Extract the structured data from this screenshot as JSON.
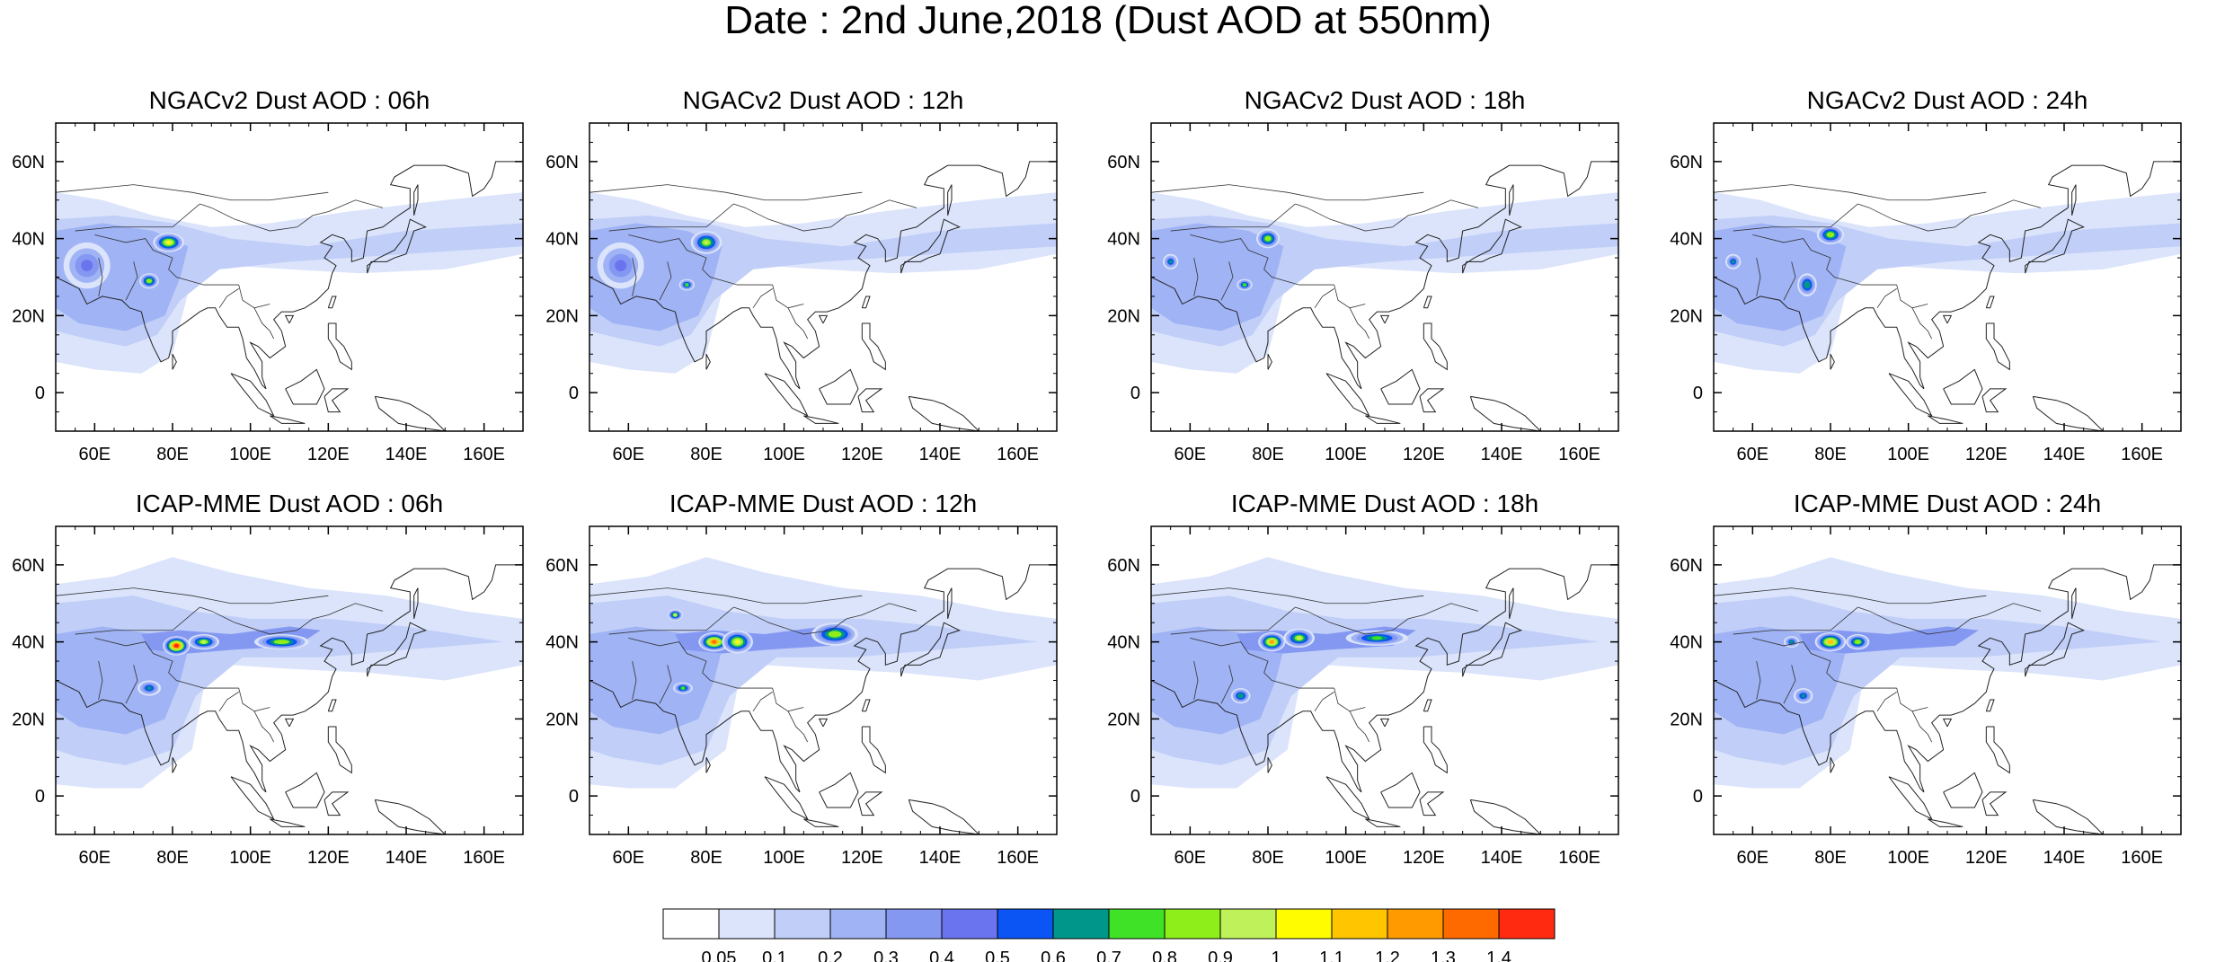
{
  "title": "Date : 2nd June,2018 (Dust AOD at 550nm)",
  "panels": [
    {
      "title": "NGACv2 Dust AOD : 06h",
      "model": "NGACv2",
      "hour": "06h",
      "hotspots": [
        {
          "lon": 79,
          "lat": 39,
          "level": 1.0,
          "rx": 4,
          "ry": 2.5
        },
        {
          "lon": 74,
          "lat": 29,
          "level": 0.8,
          "rx": 2.5,
          "ry": 2
        },
        {
          "lon": 58,
          "lat": 33,
          "level": 0.45,
          "rx": 6,
          "ry": 6
        }
      ]
    },
    {
      "title": "NGACv2 Dust AOD : 12h",
      "model": "NGACv2",
      "hour": "12h",
      "hotspots": [
        {
          "lon": 80,
          "lat": 39,
          "level": 0.9,
          "rx": 4,
          "ry": 3
        },
        {
          "lon": 75,
          "lat": 28,
          "level": 0.75,
          "rx": 2,
          "ry": 1.5
        },
        {
          "lon": 58,
          "lat": 33,
          "level": 0.45,
          "rx": 6,
          "ry": 6
        }
      ]
    },
    {
      "title": "NGACv2 Dust AOD : 18h",
      "model": "NGACv2",
      "hour": "18h",
      "hotspots": [
        {
          "lon": 80,
          "lat": 40,
          "level": 0.85,
          "rx": 3,
          "ry": 2.5
        },
        {
          "lon": 74,
          "lat": 28,
          "level": 0.7,
          "rx": 2,
          "ry": 1.5
        },
        {
          "lon": 55,
          "lat": 34,
          "level": 0.6,
          "rx": 2,
          "ry": 2
        }
      ]
    },
    {
      "title": "NGACv2 Dust AOD : 24h",
      "model": "NGACv2",
      "hour": "24h",
      "hotspots": [
        {
          "lon": 80,
          "lat": 41,
          "level": 0.85,
          "rx": 3.5,
          "ry": 2.5
        },
        {
          "lon": 74,
          "lat": 28,
          "level": 0.65,
          "rx": 2.5,
          "ry": 3
        },
        {
          "lon": 55,
          "lat": 34,
          "level": 0.6,
          "rx": 2,
          "ry": 2
        }
      ]
    },
    {
      "title": "ICAP-MME Dust AOD : 06h",
      "model": "ICAP-MME",
      "hour": "06h",
      "hotspots": [
        {
          "lon": 81,
          "lat": 39,
          "level": 1.45,
          "rx": 3.5,
          "ry": 2.5
        },
        {
          "lon": 88,
          "lat": 40,
          "level": 0.9,
          "rx": 4,
          "ry": 2
        },
        {
          "lon": 108,
          "lat": 40,
          "level": 0.85,
          "rx": 7,
          "ry": 2
        },
        {
          "lon": 74,
          "lat": 28,
          "level": 0.6,
          "rx": 3,
          "ry": 2
        }
      ]
    },
    {
      "title": "ICAP-MME Dust AOD : 12h",
      "model": "ICAP-MME",
      "hour": "12h",
      "hotspots": [
        {
          "lon": 82,
          "lat": 40,
          "level": 1.3,
          "rx": 4,
          "ry": 2.5
        },
        {
          "lon": 88,
          "lat": 40,
          "level": 1.0,
          "rx": 4,
          "ry": 3
        },
        {
          "lon": 113,
          "lat": 42,
          "level": 0.85,
          "rx": 6,
          "ry": 3
        },
        {
          "lon": 72,
          "lat": 47,
          "level": 0.9,
          "rx": 2,
          "ry": 1.5
        },
        {
          "lon": 74,
          "lat": 28,
          "level": 0.7,
          "rx": 2.5,
          "ry": 1.5
        }
      ]
    },
    {
      "title": "ICAP-MME Dust AOD : 18h",
      "model": "ICAP-MME",
      "hour": "18h",
      "hotspots": [
        {
          "lon": 81,
          "lat": 40,
          "level": 1.2,
          "rx": 3.5,
          "ry": 2.5
        },
        {
          "lon": 88,
          "lat": 41,
          "level": 0.9,
          "rx": 4,
          "ry": 2.5
        },
        {
          "lon": 108,
          "lat": 41,
          "level": 0.75,
          "rx": 8,
          "ry": 2
        },
        {
          "lon": 73,
          "lat": 26,
          "level": 0.65,
          "rx": 2.5,
          "ry": 2
        }
      ]
    },
    {
      "title": "ICAP-MME Dust AOD : 24h",
      "model": "ICAP-MME",
      "hour": "24h",
      "hotspots": [
        {
          "lon": 80,
          "lat": 40,
          "level": 1.15,
          "rx": 4,
          "ry": 2.5
        },
        {
          "lon": 87,
          "lat": 40,
          "level": 0.85,
          "rx": 3,
          "ry": 2
        },
        {
          "lon": 70,
          "lat": 40,
          "level": 0.6,
          "rx": 2,
          "ry": 1.5
        },
        {
          "lon": 73,
          "lat": 26,
          "level": 0.6,
          "rx": 2.5,
          "ry": 2
        }
      ]
    }
  ],
  "axes": {
    "x_ticks": [
      "60E",
      "80E",
      "100E",
      "120E",
      "140E",
      "160E"
    ],
    "x_tick_values": [
      60,
      80,
      100,
      120,
      140,
      160
    ],
    "y_ticks": [
      "60N",
      "40N",
      "20N",
      "0"
    ],
    "y_tick_values": [
      60,
      40,
      20,
      0
    ],
    "lon_range": [
      50,
      170
    ],
    "lat_range": [
      -10,
      70
    ]
  },
  "colorbar": {
    "labels": [
      "0.05",
      "0.1",
      "0.2",
      "0.3",
      "0.4",
      "0.5",
      "0.6",
      "0.7",
      "0.8",
      "0.9",
      "1",
      "1.1",
      "1.2",
      "1.3",
      "1.4"
    ],
    "thresholds": [
      0.05,
      0.1,
      0.2,
      0.3,
      0.4,
      0.5,
      0.6,
      0.7,
      0.8,
      0.9,
      1.0,
      1.1,
      1.2,
      1.3,
      1.4
    ],
    "colors": [
      "#ffffff",
      "#dbe4fb",
      "#c0cef8",
      "#9fb3f5",
      "#8498f2",
      "#6b74ef",
      "#0a55f3",
      "#00968a",
      "#3fe226",
      "#8dee1a",
      "#bff15b",
      "#fffc00",
      "#ffc600",
      "#ff9b00",
      "#ff6a00",
      "#ff2a10"
    ]
  }
}
